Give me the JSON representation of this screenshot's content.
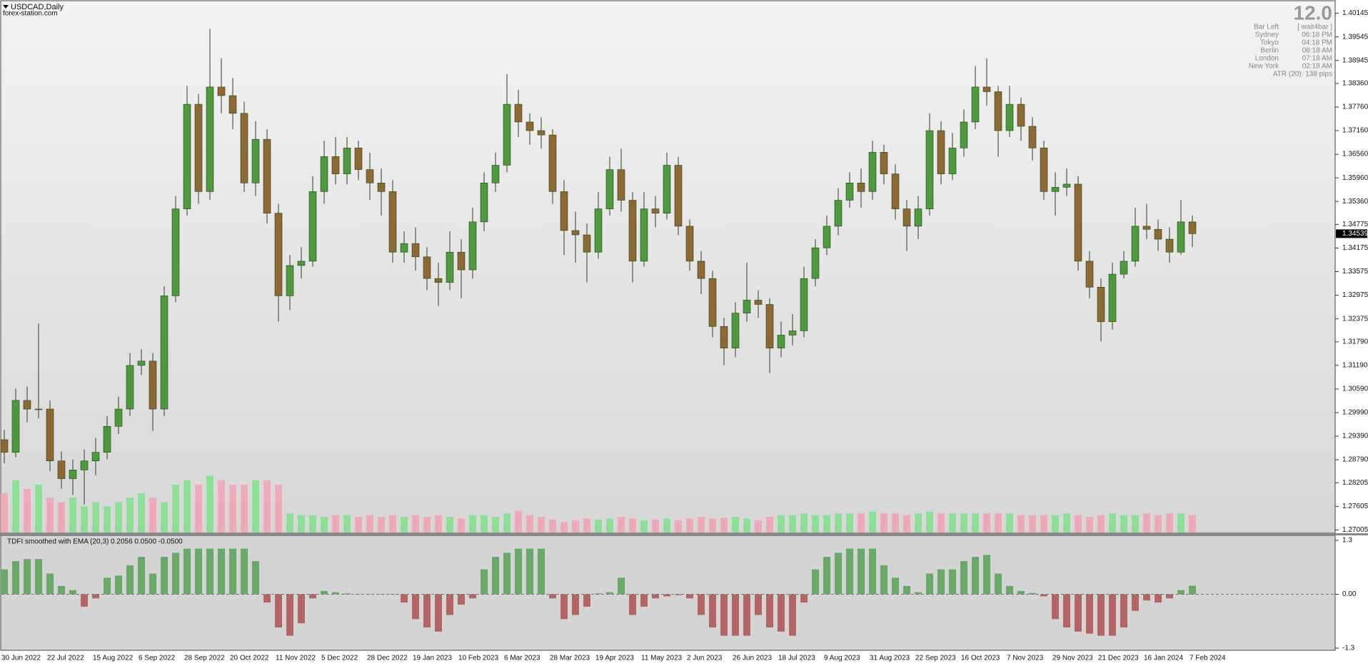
{
  "chart_data": [
    {
      "type": "candlestick",
      "title": "USDCAD,Daily",
      "subtitle": "forex-station.com",
      "open": [
        1.293,
        1.2898,
        1.303,
        1.3008,
        1.3008,
        1.2876,
        1.2831,
        1.2853,
        1.2876,
        1.2898,
        1.2964,
        1.3008,
        1.3119,
        1.313,
        1.3008,
        1.3296,
        1.3517,
        1.3783,
        1.3561,
        1.3827,
        1.3805,
        1.376,
        1.3583,
        1.3694,
        1.3506,
        1.3296,
        1.3373,
        1.3384,
        1.3561,
        1.365,
        1.3606,
        1.3672,
        1.3617,
        1.3583,
        1.3561,
        1.3407,
        1.3429,
        1.3395,
        1.334,
        1.333,
        1.3407,
        1.3362,
        1.3484,
        1.3583,
        1.3628,
        1.3783,
        1.3738,
        1.3716,
        1.3705,
        1.3561,
        1.3462,
        1.3451,
        1.3407,
        1.3517,
        1.3617,
        1.3539,
        1.3384,
        1.3517,
        1.3506,
        1.3628,
        1.3473,
        1.3384,
        1.334,
        1.3218,
        1.3163,
        1.3252,
        1.3285,
        1.3274,
        1.3163,
        1.3196,
        1.3207,
        1.334,
        1.3418,
        1.3473,
        1.3539,
        1.3583,
        1.3561,
        1.3661,
        1.3606,
        1.3517,
        1.3473,
        1.3517,
        1.3716,
        1.3606,
        1.3672,
        1.3738,
        1.3827,
        1.3815,
        1.3716,
        1.3783,
        1.3727,
        1.3672,
        1.3561,
        1.3572,
        1.358,
        1.3384,
        1.3318,
        1.323,
        1.3351,
        1.3384,
        1.3473,
        1.3465,
        1.344,
        1.3407,
        1.3484
      ],
      "high": [
        1.2955,
        1.306,
        1.3065,
        1.3225,
        1.303,
        1.29,
        1.288,
        1.2905,
        1.2935,
        1.299,
        1.304,
        1.315,
        1.316,
        1.315,
        1.332,
        1.355,
        1.383,
        1.381,
        1.3975,
        1.39,
        1.385,
        1.379,
        1.374,
        1.372,
        1.353,
        1.34,
        1.342,
        1.36,
        1.369,
        1.37,
        1.37,
        1.369,
        1.366,
        1.362,
        1.359,
        1.346,
        1.347,
        1.342,
        1.338,
        1.346,
        1.344,
        1.352,
        1.361,
        1.366,
        1.386,
        1.382,
        1.376,
        1.375,
        1.372,
        1.359,
        1.351,
        1.348,
        1.356,
        1.365,
        1.367,
        1.356,
        1.356,
        1.355,
        1.366,
        1.365,
        1.349,
        1.341,
        1.336,
        1.324,
        1.328,
        1.338,
        1.331,
        1.329,
        1.323,
        1.325,
        1.337,
        1.344,
        1.35,
        1.357,
        1.361,
        1.362,
        1.369,
        1.368,
        1.363,
        1.354,
        1.355,
        1.376,
        1.374,
        1.371,
        1.377,
        1.388,
        1.39,
        1.383,
        1.383,
        1.38,
        1.375,
        1.369,
        1.361,
        1.362,
        1.36,
        1.341,
        1.334,
        1.338,
        1.341,
        1.352,
        1.353,
        1.349,
        1.347,
        1.354,
        1.35
      ],
      "low": [
        1.287,
        1.2885,
        1.2975,
        1.2985,
        1.285,
        1.2805,
        1.279,
        1.2765,
        1.284,
        1.288,
        1.2945,
        1.299,
        1.3095,
        1.2953,
        1.299,
        1.328,
        1.35,
        1.353,
        1.354,
        1.376,
        1.372,
        1.356,
        1.355,
        1.348,
        1.323,
        1.326,
        1.334,
        1.337,
        1.353,
        1.358,
        1.358,
        1.359,
        1.354,
        1.35,
        1.338,
        1.338,
        1.336,
        1.331,
        1.327,
        1.331,
        1.329,
        1.334,
        1.346,
        1.356,
        1.361,
        1.37,
        1.368,
        1.367,
        1.353,
        1.34,
        1.338,
        1.333,
        1.339,
        1.35,
        1.351,
        1.333,
        1.337,
        1.347,
        1.349,
        1.345,
        1.336,
        1.33,
        1.319,
        1.312,
        1.314,
        1.323,
        1.324,
        1.31,
        1.314,
        1.317,
        1.319,
        1.332,
        1.34,
        1.345,
        1.352,
        1.352,
        1.354,
        1.358,
        1.349,
        1.341,
        1.344,
        1.35,
        1.358,
        1.359,
        1.365,
        1.372,
        1.378,
        1.365,
        1.37,
        1.369,
        1.364,
        1.354,
        1.35,
        1.355,
        1.336,
        1.329,
        1.318,
        1.321,
        1.334,
        1.337,
        1.344,
        1.341,
        1.338,
        1.34,
        1.342
      ],
      "close": [
        1.2898,
        1.303,
        1.3008,
        1.3008,
        1.2876,
        1.2831,
        1.2853,
        1.2876,
        1.2898,
        1.2964,
        1.3008,
        1.3119,
        1.313,
        1.3008,
        1.3296,
        1.3517,
        1.3783,
        1.3561,
        1.3827,
        1.3805,
        1.376,
        1.3583,
        1.3694,
        1.3506,
        1.3296,
        1.3373,
        1.3384,
        1.3561,
        1.365,
        1.3606,
        1.3672,
        1.3617,
        1.3583,
        1.3561,
        1.3407,
        1.3429,
        1.3395,
        1.334,
        1.333,
        1.3407,
        1.3362,
        1.3484,
        1.3583,
        1.3628,
        1.3783,
        1.3738,
        1.3716,
        1.3705,
        1.3561,
        1.3462,
        1.3451,
        1.3407,
        1.3517,
        1.3617,
        1.3539,
        1.3384,
        1.3517,
        1.3506,
        1.3628,
        1.3473,
        1.3384,
        1.334,
        1.3218,
        1.3163,
        1.3252,
        1.3285,
        1.3274,
        1.3163,
        1.3196,
        1.3207,
        1.334,
        1.3418,
        1.3473,
        1.3539,
        1.3583,
        1.3561,
        1.3661,
        1.3606,
        1.3517,
        1.3473,
        1.3517,
        1.3716,
        1.3606,
        1.3672,
        1.3738,
        1.3827,
        1.3815,
        1.3716,
        1.3783,
        1.3727,
        1.3672,
        1.3561,
        1.3572,
        1.358,
        1.3384,
        1.3318,
        1.323,
        1.3351,
        1.3384,
        1.3473,
        1.3465,
        1.344,
        1.3407,
        1.3484,
        1.34539
      ],
      "volume": [
        45,
        60,
        50,
        55,
        40,
        35,
        40,
        30,
        35,
        30,
        35,
        40,
        45,
        40,
        35,
        55,
        60,
        55,
        65,
        60,
        55,
        55,
        60,
        60,
        55,
        22,
        20,
        20,
        18,
        20,
        20,
        18,
        20,
        18,
        20,
        18,
        20,
        18,
        20,
        18,
        16,
        20,
        20,
        18,
        22,
        25,
        20,
        18,
        15,
        12,
        14,
        16,
        15,
        16,
        18,
        16,
        14,
        15,
        16,
        14,
        16,
        18,
        16,
        17,
        18,
        16,
        14,
        18,
        20,
        20,
        22,
        20,
        20,
        22,
        22,
        22,
        24,
        22,
        22,
        20,
        22,
        24,
        22,
        22,
        22,
        22,
        22,
        22,
        22,
        20,
        20,
        20,
        20,
        22,
        20,
        18,
        20,
        22,
        20,
        20,
        22,
        20,
        22,
        22,
        20
      ],
      "up_color": "#4c9a3c",
      "down_color": "#8a6a30",
      "wick_color": "#2f3f22",
      "volume_up_color": "#7fe08c",
      "volume_down_color": "#f2a2b4",
      "volume_lim": [
        0,
        100
      ],
      "ylim": [
        1.2694,
        1.4041
      ],
      "yticks": [
        1.40145,
        1.39545,
        1.38945,
        {
          "value": 1.3836,
          "label": "1.38360"
        },
        {
          "value": 1.3776,
          "label": "1.37760"
        },
        {
          "value": 1.3716,
          "label": "1.37160"
        },
        {
          "value": 1.3656,
          "label": "1.36560"
        },
        {
          "value": 1.3596,
          "label": "1.35960"
        },
        {
          "value": 1.3536,
          "label": "1.35360"
        },
        1.34775,
        1.34175,
        1.33575,
        1.32975,
        1.32375,
        {
          "value": 1.3179,
          "label": "1.31790"
        },
        {
          "value": 1.3119,
          "label": "1.31190"
        },
        {
          "value": 1.3059,
          "label": "1.30590"
        },
        {
          "value": 1.2999,
          "label": "1.29990"
        },
        {
          "value": 1.2939,
          "label": "1.29390"
        },
        {
          "value": 1.2879,
          "label": "1.28790"
        },
        1.28205,
        1.27605,
        1.27005
      ]
    },
    {
      "type": "bar",
      "title": "TDFI smoothed with EMA (20,3) 0.2056 0.0500 -0.0500",
      "categories": [
        "30 Jun 2022",
        null,
        null,
        null,
        "22 Jul 2022",
        null,
        null,
        null,
        "15 Aug 2022",
        null,
        null,
        null,
        "6 Sep 2022",
        null,
        null,
        null,
        "28 Sep 2022",
        null,
        null,
        null,
        "20 Oct 2022",
        null,
        null,
        null,
        "11 Nov 2022",
        null,
        null,
        null,
        "5 Dec 2022",
        null,
        null,
        null,
        "28 Dec 2022",
        null,
        null,
        null,
        "19 Jan 2023",
        null,
        null,
        null,
        "10 Feb 2023",
        null,
        null,
        null,
        "6 Mar 2023",
        null,
        null,
        null,
        "28 Mar 2023",
        null,
        null,
        null,
        "19 Apr 2023",
        null,
        null,
        null,
        "11 May 2023",
        null,
        null,
        null,
        "2 Jun 2023",
        null,
        null,
        null,
        "26 Jun 2023",
        null,
        null,
        null,
        "18 Jul 2023",
        null,
        null,
        null,
        "9 Aug 2023",
        null,
        null,
        null,
        "31 Aug 2023",
        null,
        null,
        null,
        "22 Sep 2023",
        null,
        null,
        null,
        "16 Oct 2023",
        null,
        null,
        null,
        "7 Nov 2023",
        null,
        null,
        null,
        "29 Nov 2023",
        null,
        null,
        null,
        "21 Dec 2023",
        null,
        null,
        null,
        "16 Jan 2024",
        null,
        null,
        null,
        "7 Feb 2024"
      ],
      "values": [
        0.6,
        0.8,
        0.85,
        0.85,
        0.5,
        0.2,
        0.1,
        -0.3,
        -0.1,
        0.4,
        0.45,
        0.7,
        0.9,
        0.5,
        0.9,
        1.0,
        1.1,
        1.1,
        1.1,
        1.1,
        1.1,
        1.1,
        0.8,
        -0.2,
        -0.8,
        -1.0,
        -0.7,
        -0.1,
        0.08,
        0.05,
        0.02,
        0.01,
        0.01,
        0.01,
        0.01,
        -0.2,
        -0.6,
        -0.8,
        -0.9,
        -0.5,
        -0.25,
        -0.1,
        0.6,
        0.9,
        1.0,
        1.1,
        1.1,
        1.1,
        -0.1,
        -0.6,
        -0.5,
        -0.3,
        0.02,
        0.05,
        0.4,
        -0.5,
        -0.3,
        -0.1,
        -0.05,
        -0.02,
        -0.1,
        -0.5,
        -0.8,
        -1.0,
        -1.0,
        -1.0,
        -0.5,
        -0.8,
        -0.9,
        -1.0,
        -0.2,
        0.6,
        0.9,
        1.0,
        1.1,
        1.1,
        1.1,
        0.7,
        0.4,
        0.2,
        0.05,
        0.5,
        0.6,
        0.6,
        0.8,
        0.9,
        0.95,
        0.5,
        0.2,
        0.08,
        0.03,
        -0.05,
        -0.6,
        -0.8,
        -0.9,
        -0.95,
        -1.0,
        -1.0,
        -0.8,
        -0.4,
        -0.15,
        -0.2,
        -0.1,
        0.1,
        0.2056
      ],
      "positive_color": "#6aa86a",
      "negative_color": "#b56464",
      "ylim": [
        -1.3,
        1.3
      ],
      "yticks": [
        1.3,
        {
          "value": 0,
          "label": "0.00"
        },
        -1.3
      ]
    }
  ],
  "info_panel": {
    "countdown": "12.0",
    "rows": [
      {
        "label": "Bar Left",
        "value": "[ wait4bar ]"
      },
      {
        "label": "Sydney",
        "value": "06:18 PM"
      },
      {
        "label": "Tokyo",
        "value": "04:18 PM"
      },
      {
        "label": "Berlin",
        "value": "08:18 AM"
      },
      {
        "label": "London",
        "value": "07:18 AM"
      },
      {
        "label": "New York",
        "value": "02:18 AM"
      }
    ],
    "atr": "ATR (20): 138 pips"
  }
}
